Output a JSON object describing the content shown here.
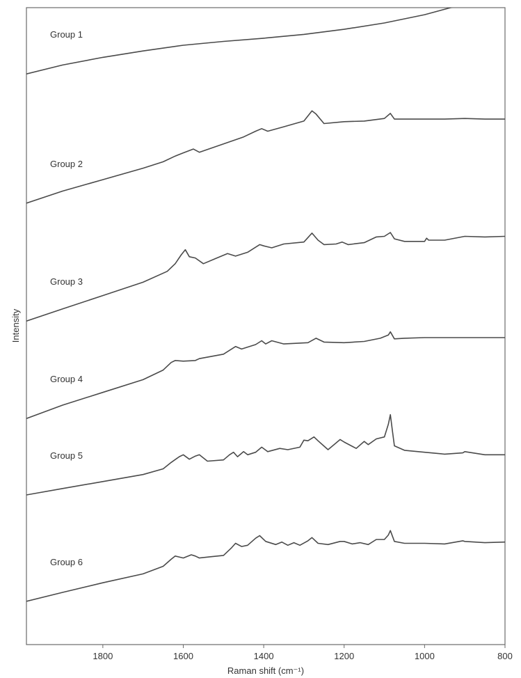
{
  "chart_data": {
    "type": "line",
    "title": "",
    "xlabel": "Raman shift (cm⁻¹)",
    "ylabel": "Intensity",
    "x_reversed": true,
    "xlim": [
      1990,
      800
    ],
    "ylim": [
      0,
      100
    ],
    "y_tick_labels": false,
    "xticks": [
      "1800",
      "1600",
      "1400",
      "1200",
      "1000",
      "800"
    ],
    "line_color": "#4a4a4a",
    "series": [
      {
        "name": "Group 1",
        "points": [
          [
            1990,
            89.6
          ],
          [
            1900,
            91.0
          ],
          [
            1800,
            92.2
          ],
          [
            1700,
            93.2
          ],
          [
            1600,
            94.1
          ],
          [
            1500,
            94.7
          ],
          [
            1400,
            95.2
          ],
          [
            1300,
            95.8
          ],
          [
            1200,
            96.6
          ],
          [
            1100,
            97.6
          ],
          [
            1000,
            98.9
          ],
          [
            900,
            100.6
          ],
          [
            800,
            102.8
          ]
        ]
      },
      {
        "name": "Group 2",
        "points": [
          [
            1990,
            69.3
          ],
          [
            1900,
            71.2
          ],
          [
            1800,
            73.0
          ],
          [
            1700,
            74.8
          ],
          [
            1650,
            75.8
          ],
          [
            1620,
            76.7
          ],
          [
            1600,
            77.2
          ],
          [
            1575,
            77.8
          ],
          [
            1560,
            77.3
          ],
          [
            1500,
            78.6
          ],
          [
            1450,
            79.7
          ],
          [
            1420,
            80.6
          ],
          [
            1405,
            81.0
          ],
          [
            1390,
            80.6
          ],
          [
            1350,
            81.3
          ],
          [
            1300,
            82.2
          ],
          [
            1280,
            83.8
          ],
          [
            1270,
            83.3
          ],
          [
            1250,
            81.8
          ],
          [
            1200,
            82.1
          ],
          [
            1150,
            82.2
          ],
          [
            1100,
            82.6
          ],
          [
            1085,
            83.4
          ],
          [
            1075,
            82.5
          ],
          [
            1050,
            82.5
          ],
          [
            1000,
            82.5
          ],
          [
            950,
            82.5
          ],
          [
            900,
            82.6
          ],
          [
            850,
            82.5
          ],
          [
            800,
            82.5
          ]
        ]
      },
      {
        "name": "Group 3",
        "points": [
          [
            1990,
            50.8
          ],
          [
            1900,
            52.7
          ],
          [
            1800,
            54.8
          ],
          [
            1700,
            56.9
          ],
          [
            1640,
            58.6
          ],
          [
            1620,
            59.8
          ],
          [
            1605,
            61.2
          ],
          [
            1595,
            62.0
          ],
          [
            1585,
            60.9
          ],
          [
            1570,
            60.7
          ],
          [
            1550,
            59.8
          ],
          [
            1520,
            60.6
          ],
          [
            1490,
            61.4
          ],
          [
            1470,
            61.0
          ],
          [
            1440,
            61.6
          ],
          [
            1410,
            62.8
          ],
          [
            1400,
            62.6
          ],
          [
            1380,
            62.3
          ],
          [
            1350,
            62.9
          ],
          [
            1300,
            63.2
          ],
          [
            1290,
            63.9
          ],
          [
            1280,
            64.6
          ],
          [
            1265,
            63.5
          ],
          [
            1250,
            62.8
          ],
          [
            1220,
            62.9
          ],
          [
            1205,
            63.2
          ],
          [
            1190,
            62.8
          ],
          [
            1150,
            63.1
          ],
          [
            1120,
            64.0
          ],
          [
            1100,
            64.1
          ],
          [
            1085,
            64.7
          ],
          [
            1075,
            63.7
          ],
          [
            1050,
            63.3
          ],
          [
            1000,
            63.3
          ],
          [
            995,
            63.8
          ],
          [
            990,
            63.5
          ],
          [
            950,
            63.5
          ],
          [
            900,
            64.1
          ],
          [
            850,
            64.0
          ],
          [
            800,
            64.1
          ]
        ]
      },
      {
        "name": "Group 4",
        "points": [
          [
            1990,
            35.5
          ],
          [
            1900,
            37.6
          ],
          [
            1800,
            39.6
          ],
          [
            1700,
            41.6
          ],
          [
            1650,
            43.1
          ],
          [
            1630,
            44.3
          ],
          [
            1620,
            44.6
          ],
          [
            1600,
            44.5
          ],
          [
            1570,
            44.6
          ],
          [
            1560,
            44.9
          ],
          [
            1500,
            45.6
          ],
          [
            1470,
            46.8
          ],
          [
            1455,
            46.4
          ],
          [
            1420,
            47.1
          ],
          [
            1405,
            47.7
          ],
          [
            1395,
            47.2
          ],
          [
            1380,
            47.7
          ],
          [
            1350,
            47.2
          ],
          [
            1320,
            47.3
          ],
          [
            1290,
            47.4
          ],
          [
            1270,
            48.1
          ],
          [
            1250,
            47.5
          ],
          [
            1200,
            47.4
          ],
          [
            1150,
            47.6
          ],
          [
            1110,
            48.1
          ],
          [
            1090,
            48.6
          ],
          [
            1085,
            49.1
          ],
          [
            1075,
            48.0
          ],
          [
            1050,
            48.1
          ],
          [
            1000,
            48.2
          ],
          [
            950,
            48.2
          ],
          [
            900,
            48.2
          ],
          [
            850,
            48.2
          ],
          [
            800,
            48.2
          ]
        ]
      },
      {
        "name": "Group 5",
        "points": [
          [
            1990,
            23.5
          ],
          [
            1900,
            24.5
          ],
          [
            1800,
            25.6
          ],
          [
            1700,
            26.7
          ],
          [
            1650,
            27.6
          ],
          [
            1630,
            28.6
          ],
          [
            1610,
            29.5
          ],
          [
            1600,
            29.8
          ],
          [
            1585,
            29.1
          ],
          [
            1570,
            29.6
          ],
          [
            1560,
            29.8
          ],
          [
            1540,
            28.8
          ],
          [
            1500,
            29.0
          ],
          [
            1485,
            29.8
          ],
          [
            1475,
            30.2
          ],
          [
            1465,
            29.5
          ],
          [
            1450,
            30.3
          ],
          [
            1440,
            29.8
          ],
          [
            1420,
            30.2
          ],
          [
            1405,
            31.0
          ],
          [
            1390,
            30.3
          ],
          [
            1360,
            30.8
          ],
          [
            1340,
            30.6
          ],
          [
            1310,
            31.0
          ],
          [
            1300,
            32.1
          ],
          [
            1290,
            32.0
          ],
          [
            1275,
            32.6
          ],
          [
            1265,
            32.0
          ],
          [
            1240,
            30.6
          ],
          [
            1210,
            32.2
          ],
          [
            1200,
            31.8
          ],
          [
            1170,
            30.8
          ],
          [
            1150,
            31.9
          ],
          [
            1140,
            31.4
          ],
          [
            1120,
            32.3
          ],
          [
            1100,
            32.6
          ],
          [
            1090,
            34.6
          ],
          [
            1085,
            36.1
          ],
          [
            1080,
            33.6
          ],
          [
            1075,
            31.2
          ],
          [
            1050,
            30.5
          ],
          [
            1000,
            30.2
          ],
          [
            950,
            29.9
          ],
          [
            905,
            30.1
          ],
          [
            900,
            30.3
          ],
          [
            850,
            29.8
          ],
          [
            800,
            29.8
          ]
        ]
      },
      {
        "name": "Group 6",
        "points": [
          [
            1990,
            6.8
          ],
          [
            1900,
            8.2
          ],
          [
            1800,
            9.7
          ],
          [
            1700,
            11.1
          ],
          [
            1650,
            12.3
          ],
          [
            1630,
            13.4
          ],
          [
            1620,
            13.9
          ],
          [
            1600,
            13.6
          ],
          [
            1580,
            14.1
          ],
          [
            1570,
            13.9
          ],
          [
            1560,
            13.6
          ],
          [
            1530,
            13.8
          ],
          [
            1500,
            14.0
          ],
          [
            1480,
            15.2
          ],
          [
            1470,
            15.9
          ],
          [
            1455,
            15.4
          ],
          [
            1440,
            15.6
          ],
          [
            1420,
            16.7
          ],
          [
            1410,
            17.1
          ],
          [
            1395,
            16.2
          ],
          [
            1370,
            15.7
          ],
          [
            1355,
            16.1
          ],
          [
            1340,
            15.6
          ],
          [
            1325,
            16.0
          ],
          [
            1310,
            15.6
          ],
          [
            1290,
            16.3
          ],
          [
            1280,
            16.8
          ],
          [
            1265,
            15.9
          ],
          [
            1240,
            15.7
          ],
          [
            1210,
            16.2
          ],
          [
            1200,
            16.2
          ],
          [
            1180,
            15.8
          ],
          [
            1160,
            16.0
          ],
          [
            1140,
            15.7
          ],
          [
            1120,
            16.5
          ],
          [
            1100,
            16.5
          ],
          [
            1090,
            17.2
          ],
          [
            1085,
            17.9
          ],
          [
            1075,
            16.2
          ],
          [
            1050,
            15.9
          ],
          [
            1000,
            15.9
          ],
          [
            950,
            15.8
          ],
          [
            905,
            16.3
          ],
          [
            900,
            16.2
          ],
          [
            850,
            16.0
          ],
          [
            800,
            16.1
          ]
        ]
      }
    ]
  }
}
